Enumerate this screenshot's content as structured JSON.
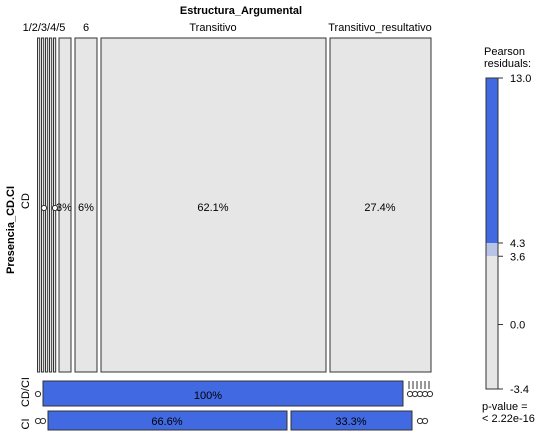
{
  "chart_data": {
    "type": "mosaic",
    "title": "Estructura_Argumental",
    "ylabel": "Presencia_CD.CI",
    "column_labels": [
      "1/2/3/4/5",
      "6",
      "Transitivo",
      "Transitivo_resultativo"
    ],
    "row_labels": [
      "CD",
      "CI",
      "CD/CI"
    ],
    "cells": [
      {
        "row": "CD",
        "label": "3%"
      },
      {
        "row": "CD",
        "label": "6%"
      },
      {
        "row": "CD",
        "label": "62.1%"
      },
      {
        "row": "CD",
        "label": "27.4%"
      },
      {
        "row": "CI CD/CI",
        "label": "100%"
      },
      {
        "row": "CI CD/CI",
        "label": "66.6%"
      },
      {
        "row": "CI CD/CI",
        "label": "33.3%"
      }
    ],
    "legend": {
      "title_lines": [
        "Pearson",
        "residuals:"
      ],
      "ticks": [
        "13.0",
        "4.3",
        "3.6",
        "0.0",
        "-3.4"
      ],
      "tick_values": [
        13.0,
        4.3,
        3.6,
        0.0,
        -3.4
      ],
      "range": [
        -3.4,
        13.0
      ],
      "pvalue_lines": [
        "p-value =",
        "< 2.22e-16"
      ]
    },
    "colors": {
      "positive": "#4169e1",
      "mid": "#b8c4e6",
      "neutral": "#e6e6e6",
      "outline": "#333333"
    }
  }
}
